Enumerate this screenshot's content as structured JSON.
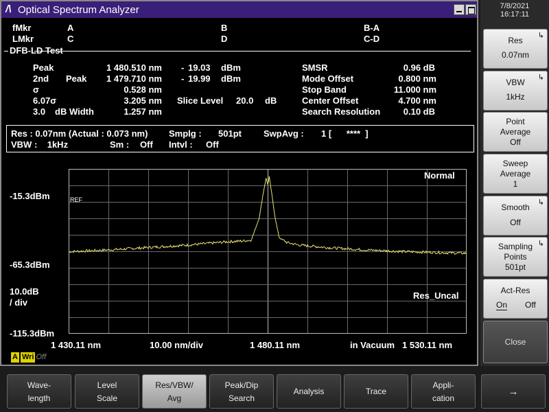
{
  "datetime": {
    "date": "7/8/2021",
    "time": "16:17:11"
  },
  "window": {
    "logo": "/\\",
    "title": "Optical Spectrum Analyzer"
  },
  "markers": {
    "fmkr_label": "fMkr",
    "lmkr_label": "LMkr",
    "a": "A",
    "b": "B",
    "ba": "B-A",
    "c": "C",
    "d": "D",
    "cd": "C-D"
  },
  "test_title": "DFB-LD Test",
  "results": {
    "peak_label": "Peak",
    "peak_wl": "1 480.510 nm",
    "peak_dash": "-",
    "peak_lvl": "19.03",
    "peak_unit": "dBm",
    "second_label": "2nd",
    "second_peak_label": "Peak",
    "second_wl": "1 479.710 nm",
    "second_dash": "-",
    "second_lvl": "19.99",
    "second_unit": "dBm",
    "sigma_label": "σ",
    "sigma_val": "0.528 nm",
    "six_sigma_label": "6.07σ",
    "six_sigma_val": "3.205 nm",
    "slice_label": "Slice Level",
    "slice_val": "20.0",
    "slice_unit": "dB",
    "dbwidth_num": "3.0",
    "dbwidth_label": "dB Width",
    "dbwidth_val": "1.257 nm",
    "smsr_label": "SMSR",
    "smsr_val": "0.96 dB",
    "mode_offset_label": "Mode Offset",
    "mode_offset_val": "0.800 nm",
    "stop_band_label": "Stop Band",
    "stop_band_val": "11.000 nm",
    "center_offset_label": "Center Offset",
    "center_offset_val": "4.700 nm",
    "search_res_label": "Search Resolution",
    "search_res_val": "0.10 dB"
  },
  "settings": {
    "res": "Res :  0.07nm (Actual :  0.073 nm)",
    "smplg_label": "Smplg :",
    "smplg_val": "501pt",
    "swpavg_label": "SwpAvg :",
    "swpavg_val": "1 [      ****  ]",
    "vbw": "VBW :    1kHz",
    "sm_label": "Sm :",
    "sm_val": "Off",
    "intvl_label": "Intvl :",
    "intvl_val": "Off"
  },
  "plot": {
    "mode": "Normal",
    "ref_tag": "REF",
    "y_top": "-15.3dBm",
    "y_mid": "-65.3dBm",
    "scale_line1": "10.0dB",
    "scale_line2": "/ div",
    "y_bottom": "-115.3dBm",
    "res_uncal": "Res_Uncal",
    "x_start": "1 430.11 nm",
    "x_div": "10.00 nm/div",
    "x_center": "1 480.11 nm",
    "medium": "in Vacuum",
    "x_stop": "1 530.11 nm"
  },
  "chart_data": {
    "type": "line",
    "x_unit": "nm",
    "y_unit": "dBm",
    "xlim": [
      1430.11,
      1530.11
    ],
    "ylim": [
      -115.3,
      -15.3
    ],
    "grid": true,
    "series": [
      {
        "color": "#e8e37a",
        "x": [
          1430.11,
          1440,
          1450,
          1460,
          1465,
          1470,
          1474,
          1476,
          1478,
          1479,
          1479.71,
          1480.2,
          1480.51,
          1481,
          1482,
          1483,
          1485,
          1488,
          1495,
          1505,
          1515,
          1530.11
        ],
        "y": [
          -65.5,
          -64.5,
          -63,
          -61.5,
          -60.5,
          -59.5,
          -59,
          -58.5,
          -45,
          -30,
          -21,
          -25,
          -20,
          -28,
          -45,
          -57,
          -60,
          -61.5,
          -63,
          -64.5,
          -65.5,
          -66.5
        ]
      }
    ]
  },
  "softkeys": [
    {
      "line1": "Res",
      "line2": "0.07nm"
    },
    {
      "line1": "VBW",
      "line2": "1kHz"
    },
    {
      "line1": "Point",
      "line2": "Average",
      "line3": "Off"
    },
    {
      "line1": "Sweep",
      "line2": "Average",
      "line3": "1"
    },
    {
      "line1": "Smooth",
      "line2": "Off"
    },
    {
      "line1": "Sampling",
      "line2": "Points",
      "line3": "501pt"
    },
    {
      "line1": "Act-Res",
      "on": "On",
      "off": "Off"
    },
    {
      "line1": "Close"
    }
  ],
  "bottom_keys": [
    {
      "line1": "Wave-",
      "line2": "length"
    },
    {
      "line1": "Level",
      "line2": "Scale"
    },
    {
      "line1": "Res/VBW/",
      "line2": "Avg"
    },
    {
      "line1": "Peak/Dip",
      "line2": "Search"
    },
    {
      "line1": "Analysis"
    },
    {
      "line1": "Trace"
    },
    {
      "line1": "Appli-",
      "line2": "cation"
    },
    {
      "line1": "→"
    }
  ],
  "status": {
    "a": "A",
    "wri": "Wri",
    "off": "Off"
  }
}
